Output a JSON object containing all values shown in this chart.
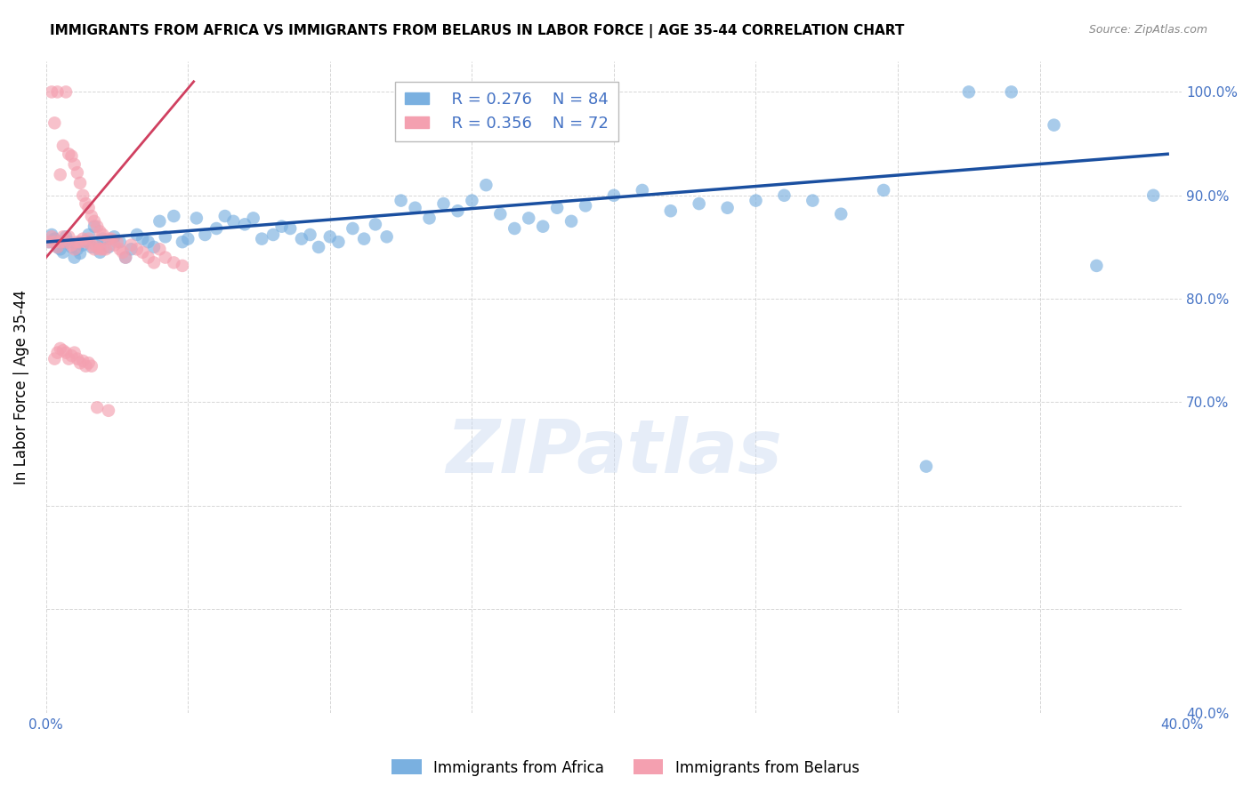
{
  "title": "IMMIGRANTS FROM AFRICA VS IMMIGRANTS FROM BELARUS IN LABOR FORCE | AGE 35-44 CORRELATION CHART",
  "source": "Source: ZipAtlas.com",
  "ylabel": "In Labor Force | Age 35-44",
  "xlim": [
    0.0,
    0.4
  ],
  "ylim": [
    0.4,
    1.03
  ],
  "xticks": [
    0.0,
    0.05,
    0.1,
    0.15,
    0.2,
    0.25,
    0.3,
    0.35,
    0.4
  ],
  "xticklabels": [
    "0.0%",
    "",
    "",
    "",
    "",
    "",
    "",
    "",
    "40.0%"
  ],
  "yticks": [
    0.4,
    0.5,
    0.6,
    0.7,
    0.8,
    0.9,
    1.0
  ],
  "yticklabels": [
    "40.0%",
    "",
    "",
    "70.0%",
    "80.0%",
    "90.0%",
    "100.0%"
  ],
  "legend_blue_r": "0.276",
  "legend_blue_n": "84",
  "legend_pink_r": "0.356",
  "legend_pink_n": "72",
  "legend_label_blue": "Immigrants from Africa",
  "legend_label_pink": "Immigrants from Belarus",
  "watermark": "ZIPatlas",
  "blue_color": "#7ab0e0",
  "pink_color": "#f4a0b0",
  "line_blue": "#1a4fa0",
  "line_pink": "#d04060",
  "africa_x": [
    0.001,
    0.002,
    0.003,
    0.004,
    0.005,
    0.006,
    0.007,
    0.008,
    0.009,
    0.01,
    0.011,
    0.012,
    0.013,
    0.014,
    0.015,
    0.016,
    0.017,
    0.018,
    0.019,
    0.02,
    0.022,
    0.024,
    0.026,
    0.028,
    0.03,
    0.032,
    0.034,
    0.036,
    0.038,
    0.04,
    0.042,
    0.045,
    0.048,
    0.05,
    0.053,
    0.056,
    0.06,
    0.063,
    0.066,
    0.07,
    0.073,
    0.076,
    0.08,
    0.083,
    0.086,
    0.09,
    0.093,
    0.096,
    0.1,
    0.103,
    0.108,
    0.112,
    0.116,
    0.12,
    0.125,
    0.13,
    0.135,
    0.14,
    0.145,
    0.15,
    0.155,
    0.16,
    0.165,
    0.17,
    0.175,
    0.18,
    0.185,
    0.19,
    0.2,
    0.21,
    0.22,
    0.23,
    0.24,
    0.25,
    0.26,
    0.27,
    0.28,
    0.295,
    0.31,
    0.325,
    0.34,
    0.355,
    0.37,
    0.39
  ],
  "africa_y": [
    0.855,
    0.862,
    0.858,
    0.85,
    0.848,
    0.845,
    0.86,
    0.855,
    0.85,
    0.84,
    0.848,
    0.844,
    0.852,
    0.856,
    0.862,
    0.85,
    0.87,
    0.855,
    0.845,
    0.858,
    0.85,
    0.86,
    0.855,
    0.84,
    0.848,
    0.862,
    0.858,
    0.855,
    0.85,
    0.875,
    0.86,
    0.88,
    0.855,
    0.858,
    0.878,
    0.862,
    0.868,
    0.88,
    0.875,
    0.872,
    0.878,
    0.858,
    0.862,
    0.87,
    0.868,
    0.858,
    0.862,
    0.85,
    0.86,
    0.855,
    0.868,
    0.858,
    0.872,
    0.86,
    0.895,
    0.888,
    0.878,
    0.892,
    0.885,
    0.895,
    0.91,
    0.882,
    0.868,
    0.878,
    0.87,
    0.888,
    0.875,
    0.89,
    0.9,
    0.905,
    0.885,
    0.892,
    0.888,
    0.895,
    0.9,
    0.895,
    0.882,
    0.905,
    0.638,
    1.0,
    1.0,
    0.968,
    0.832,
    0.9
  ],
  "belarus_x": [
    0.001,
    0.002,
    0.002,
    0.003,
    0.003,
    0.004,
    0.004,
    0.005,
    0.005,
    0.006,
    0.006,
    0.007,
    0.007,
    0.008,
    0.008,
    0.009,
    0.009,
    0.01,
    0.01,
    0.011,
    0.011,
    0.012,
    0.012,
    0.013,
    0.013,
    0.014,
    0.014,
    0.015,
    0.015,
    0.016,
    0.016,
    0.017,
    0.017,
    0.018,
    0.018,
    0.019,
    0.019,
    0.02,
    0.02,
    0.021,
    0.022,
    0.023,
    0.024,
    0.025,
    0.026,
    0.027,
    0.028,
    0.03,
    0.032,
    0.034,
    0.036,
    0.038,
    0.04,
    0.042,
    0.045,
    0.048,
    0.003,
    0.004,
    0.005,
    0.006,
    0.007,
    0.008,
    0.009,
    0.01,
    0.011,
    0.012,
    0.013,
    0.014,
    0.015,
    0.016,
    0.018,
    0.022
  ],
  "belarus_y": [
    0.855,
    0.86,
    1.0,
    0.855,
    0.97,
    0.85,
    1.0,
    0.92,
    0.855,
    0.86,
    0.948,
    0.855,
    1.0,
    0.86,
    0.94,
    0.852,
    0.938,
    0.848,
    0.93,
    0.855,
    0.922,
    0.855,
    0.912,
    0.858,
    0.9,
    0.855,
    0.892,
    0.858,
    0.888,
    0.852,
    0.88,
    0.848,
    0.875,
    0.85,
    0.87,
    0.848,
    0.865,
    0.848,
    0.862,
    0.848,
    0.858,
    0.858,
    0.852,
    0.855,
    0.848,
    0.845,
    0.84,
    0.852,
    0.848,
    0.845,
    0.84,
    0.835,
    0.848,
    0.84,
    0.835,
    0.832,
    0.742,
    0.748,
    0.752,
    0.75,
    0.748,
    0.742,
    0.745,
    0.748,
    0.742,
    0.738,
    0.74,
    0.735,
    0.738,
    0.735,
    0.695,
    0.692
  ],
  "blue_line_x": [
    0.0,
    0.395
  ],
  "blue_line_y": [
    0.855,
    0.94
  ],
  "pink_line_x": [
    0.0,
    0.052
  ],
  "pink_line_y": [
    0.84,
    1.01
  ]
}
